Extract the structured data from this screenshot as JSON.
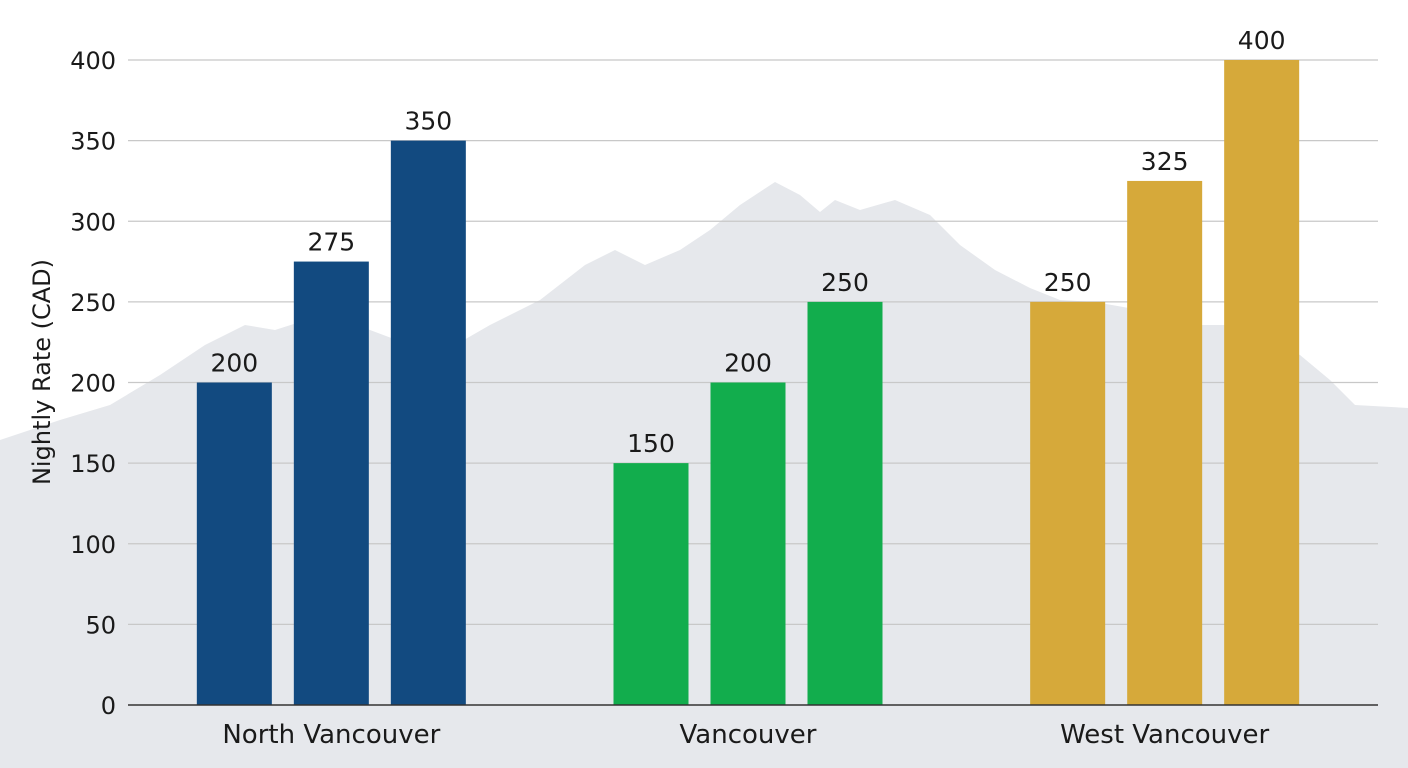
{
  "chart_data": {
    "type": "bar",
    "title": "",
    "xlabel": "",
    "ylabel": "Nightly Rate (CAD)",
    "ylim": [
      0,
      400
    ],
    "yticks": [
      0,
      50,
      100,
      150,
      200,
      250,
      300,
      350,
      400
    ],
    "grid": true,
    "legend": "none",
    "background_decoration": "mountain-silhouette",
    "categories": [
      "North Vancouver",
      "Vancouver",
      "West Vancouver"
    ],
    "groups": [
      {
        "category": "North Vancouver",
        "color": "#124a80",
        "values": [
          200,
          275,
          350
        ]
      },
      {
        "category": "Vancouver",
        "color": "#12ad4d",
        "values": [
          150,
          200,
          250
        ]
      },
      {
        "category": "West Vancouver",
        "color": "#d6a93a",
        "values": [
          250,
          325,
          400
        ]
      }
    ],
    "colors": {
      "grid": "#c8c8c8",
      "axis": "#333333",
      "mountain": "#e6e8ec"
    }
  }
}
